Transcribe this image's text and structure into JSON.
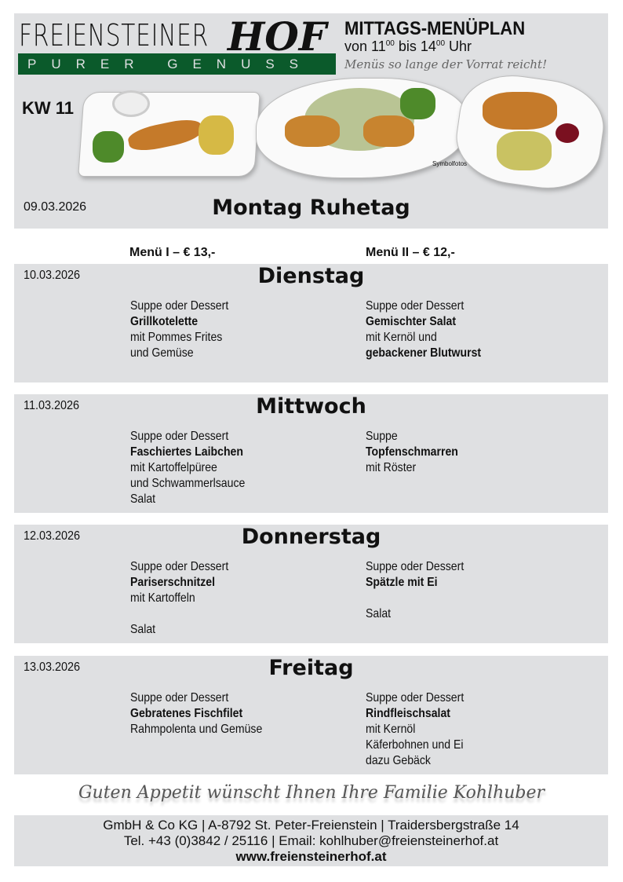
{
  "header": {
    "logo_top": "FREIENSTEINER",
    "logo_hof": "HOF",
    "logo_band": "PURER GENUSS",
    "title": "MITTAGS-MENÜPLAN",
    "hours_von": "von 11",
    "hours_sup1": "00",
    "hours_bis": " bis 14",
    "hours_sup2": "00",
    "hours_uhr": " Uhr",
    "slogan": "Menüs so lange der Vorrat reicht!",
    "week": "KW 11",
    "photo_note": "Symbolfotos",
    "closed_date": "09.03.2026",
    "closed_title": "Montag Ruhetag"
  },
  "menu_headers": [
    "Menü I – € 13,-",
    "Menü II – € 12,-"
  ],
  "days": [
    {
      "date": "10.03.2026",
      "name": "Dienstag",
      "menu1": [
        {
          "t": "Suppe oder Dessert",
          "b": false
        },
        {
          "t": "Grillkotelette",
          "b": true
        },
        {
          "t": "mit Pommes Frites",
          "b": false
        },
        {
          "t": "und Gemüse",
          "b": false
        }
      ],
      "menu2": [
        {
          "t": "Suppe oder Dessert",
          "b": false
        },
        {
          "t": "Gemischter Salat",
          "b": true
        },
        {
          "t": "mit Kernöl und",
          "b": false
        },
        {
          "t": "gebackener Blutwurst",
          "b": true
        }
      ]
    },
    {
      "date": "11.03.2026",
      "name": "Mittwoch",
      "menu1": [
        {
          "t": "Suppe oder Dessert",
          "b": false
        },
        {
          "t": "Faschiertes Laibchen",
          "b": true
        },
        {
          "t": "mit Kartoffelpüree",
          "b": false
        },
        {
          "t": "und Schwammerlsauce",
          "b": false
        },
        {
          "t": "Salat",
          "b": false
        }
      ],
      "menu2": [
        {
          "t": "Suppe",
          "b": false
        },
        {
          "t": "Topfenschmarren",
          "b": true
        },
        {
          "t": "mit Röster",
          "b": false
        }
      ]
    },
    {
      "date": "12.03.2026",
      "name": "Donnerstag",
      "menu1": [
        {
          "t": "Suppe oder Dessert",
          "b": false
        },
        {
          "t": "Pariserschnitzel",
          "b": true
        },
        {
          "t": "mit Kartoffeln",
          "b": false
        },
        {
          "t": "",
          "b": false
        },
        {
          "t": "Salat",
          "b": false
        }
      ],
      "menu2": [
        {
          "t": "Suppe oder Dessert",
          "b": false
        },
        {
          "t": "Spätzle mit Ei",
          "b": true
        },
        {
          "t": "",
          "b": false
        },
        {
          "t": "Salat",
          "b": false
        }
      ]
    },
    {
      "date": "13.03.2026",
      "name": "Freitag",
      "menu1": [
        {
          "t": "Suppe oder Dessert",
          "b": false
        },
        {
          "t": "Gebratenes Fischfilet",
          "b": true
        },
        {
          "t": "Rahmpolenta und Gemüse",
          "b": false
        }
      ],
      "menu2": [
        {
          "t": "Suppe oder Dessert",
          "b": false
        },
        {
          "t": "Rindfleischsalat",
          "b": true
        },
        {
          "t": "mit Kernöl",
          "b": false
        },
        {
          "t": "Käferbohnen und Ei",
          "b": false
        },
        {
          "t": "dazu Gebäck",
          "b": false
        }
      ]
    }
  ],
  "greeting": "Guten Appetit wünscht Ihnen Ihre Familie Kohlhuber",
  "footer": {
    "line1": "GmbH & Co KG | A-8792 St. Peter-Freienstein | Traidersbergstraße 14",
    "line2": "Tel. +43 (0)3842 / 25116 | Email: kohlhuber@freiensteinerhof.at",
    "website": "www.freiensteinerhof.at"
  },
  "colors": {
    "panel": "#dfe0e2",
    "brand_green": "#0b5a2b"
  }
}
